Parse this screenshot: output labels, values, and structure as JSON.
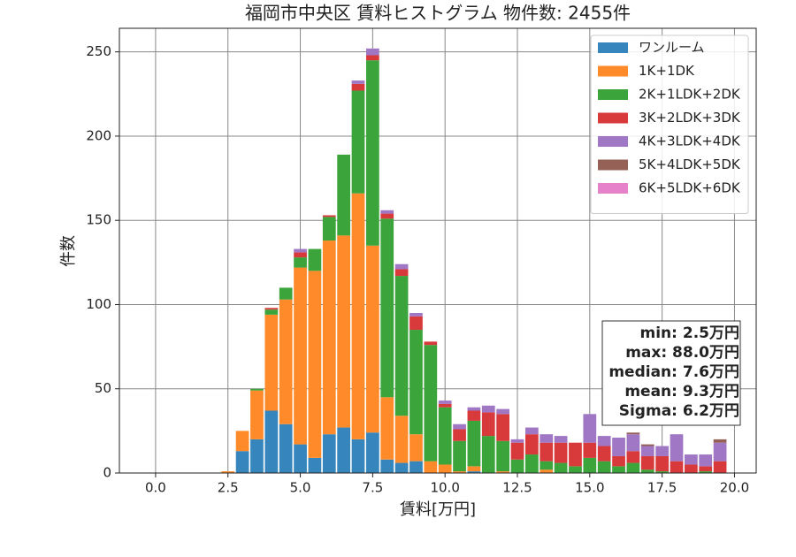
{
  "chart_data": {
    "type": "histogram",
    "title": "福岡市中央区 賃料ヒストグラム  物件数: 2455件",
    "x_label": "賃料[万円]",
    "y_label": "件数",
    "bins": [
      2.25,
      2.75,
      3.25,
      3.75,
      4.25,
      4.75,
      5.25,
      5.75,
      6.25,
      6.75,
      7.25,
      7.75,
      8.25,
      8.75,
      9.25,
      9.75,
      10.25,
      10.75,
      11.25,
      11.75,
      12.25,
      12.75,
      13.25,
      13.75,
      14.25,
      14.75,
      15.25,
      15.75,
      16.25,
      16.75,
      17.25,
      17.75,
      18.25,
      18.75,
      19.25,
      19.75
    ],
    "series": [
      {
        "name": "ワンルーム",
        "color": "#3685bc",
        "values": [
          0,
          13,
          20,
          37,
          29,
          17,
          9,
          23,
          27,
          20,
          24,
          8,
          6,
          7,
          0,
          0,
          0,
          1,
          0,
          0,
          0,
          0,
          0,
          0,
          0,
          0,
          0,
          0,
          0,
          0,
          0,
          0,
          0,
          0,
          0
        ]
      },
      {
        "name": "1K+1DK",
        "color": "#fe8a2a",
        "values": [
          1,
          12,
          29,
          57,
          74,
          105,
          111,
          115,
          114,
          146,
          111,
          37,
          28,
          16,
          7,
          5,
          1,
          3,
          0,
          1,
          0,
          0,
          2,
          0,
          0,
          0,
          0,
          0,
          0,
          0,
          0,
          0,
          0,
          0,
          0
        ]
      },
      {
        "name": "2K+1LDK+2DK",
        "color": "#3ba53b",
        "values": [
          0,
          0,
          1,
          3,
          7,
          6,
          13,
          14,
          48,
          61,
          110,
          106,
          83,
          62,
          69,
          34,
          18,
          27,
          22,
          18,
          8,
          11,
          5,
          6,
          4,
          9,
          7,
          4,
          6,
          2,
          1,
          0,
          0,
          1,
          0
        ]
      },
      {
        "name": "3K+2LDK+3DK",
        "color": "#d83a3b",
        "values": [
          0,
          0,
          0,
          1,
          0,
          3,
          0,
          1,
          0,
          4,
          3,
          3,
          4,
          8,
          2,
          2,
          7,
          6,
          14,
          16,
          10,
          12,
          11,
          12,
          14,
          9,
          9,
          6,
          7,
          8,
          9,
          7,
          5,
          3,
          7
        ]
      },
      {
        "name": "4K+3LDK+4DK",
        "color": "#9f77c4",
        "values": [
          0,
          0,
          0,
          0,
          0,
          2,
          0,
          0,
          0,
          2,
          4,
          2,
          3,
          2,
          0,
          2,
          3,
          2,
          4,
          3,
          2,
          4,
          5,
          4,
          0,
          17,
          6,
          11,
          10,
          6,
          6,
          16,
          6,
          7,
          11
        ]
      },
      {
        "name": "5K+4LDK+5DK",
        "color": "#956156",
        "values": [
          0,
          0,
          0,
          0,
          0,
          0,
          0,
          0,
          0,
          0,
          0,
          0,
          0,
          0,
          0,
          0,
          0,
          0,
          0,
          0,
          0,
          0,
          0,
          0,
          0,
          0,
          0,
          0,
          1,
          1,
          0,
          0,
          0,
          0,
          2
        ]
      },
      {
        "name": "6K+5LDK+6DK",
        "color": "#e682c9",
        "values": [
          0,
          0,
          0,
          0,
          0,
          0,
          0,
          0,
          0,
          0,
          0,
          0,
          0,
          0,
          0,
          0,
          0,
          0,
          0,
          0,
          0,
          0,
          0,
          0,
          0,
          0,
          0,
          0,
          0,
          0,
          0,
          0,
          0,
          0,
          0
        ]
      }
    ],
    "xlim": [
      -1.25,
      20.75
    ],
    "ylim": [
      0,
      264
    ],
    "xticks": [
      {
        "value": 0,
        "label": "0.0"
      },
      {
        "value": 2.5,
        "label": "2.5"
      },
      {
        "value": 5,
        "label": "5.0"
      },
      {
        "value": 7.5,
        "label": "7.5"
      },
      {
        "value": 10,
        "label": "10.0"
      },
      {
        "value": 12.5,
        "label": "12.5"
      },
      {
        "value": 15,
        "label": "15.0"
      },
      {
        "value": 17.5,
        "label": "17.5"
      },
      {
        "value": 20,
        "label": "20.0"
      }
    ],
    "yticks": [
      0,
      50,
      100,
      150,
      200,
      250
    ],
    "grid": true,
    "legend": "upper right",
    "stacked": true,
    "annotations": [
      "min: 2.5万円",
      "max: 88.0万円",
      "median: 7.6万円",
      "mean: 9.3万円",
      "Sigma: 6.2万円"
    ]
  }
}
